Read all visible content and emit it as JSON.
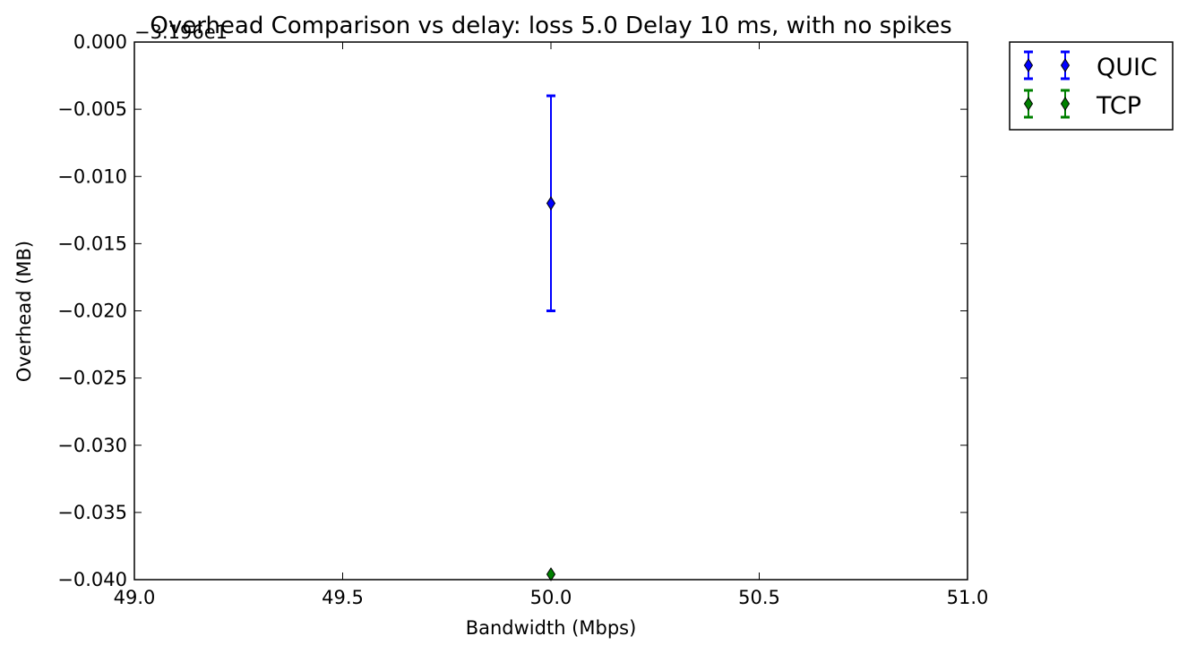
{
  "chart_data": {
    "type": "scatter",
    "title": "Overhead Comparison vs delay: loss 5.0 Delay 10 ms, with no spikes",
    "xlabel": "Bandwidth (Mbps)",
    "ylabel": "Overhead (MB)",
    "offset_label": "−3.196e1",
    "xlim": [
      49.0,
      51.0
    ],
    "ylim": [
      -0.04,
      0.0
    ],
    "xticks": [
      49.0,
      49.5,
      50.0,
      50.5,
      51.0
    ],
    "xtick_labels": [
      "49.0",
      "49.5",
      "50.0",
      "50.5",
      "51.0"
    ],
    "yticks": [
      0.0,
      -0.005,
      -0.01,
      -0.015,
      -0.02,
      -0.025,
      -0.03,
      -0.035,
      -0.04
    ],
    "ytick_labels": [
      "0.000",
      "−0.005",
      "−0.010",
      "−0.015",
      "−0.020",
      "−0.025",
      "−0.030",
      "−0.035",
      "−0.040"
    ],
    "grid": false,
    "legend_position": "outside top-right",
    "series": [
      {
        "name": "QUIC",
        "color": "#0000ff",
        "marker": "diamond",
        "points": [
          {
            "x": 50.0,
            "y": -0.012,
            "err_low": -0.02,
            "err_high": -0.004
          }
        ]
      },
      {
        "name": "TCP",
        "color": "#008000",
        "marker": "diamond",
        "points": [
          {
            "x": 50.0,
            "y": -0.0396,
            "err_low": -0.0396,
            "err_high": -0.0396
          }
        ]
      }
    ]
  }
}
